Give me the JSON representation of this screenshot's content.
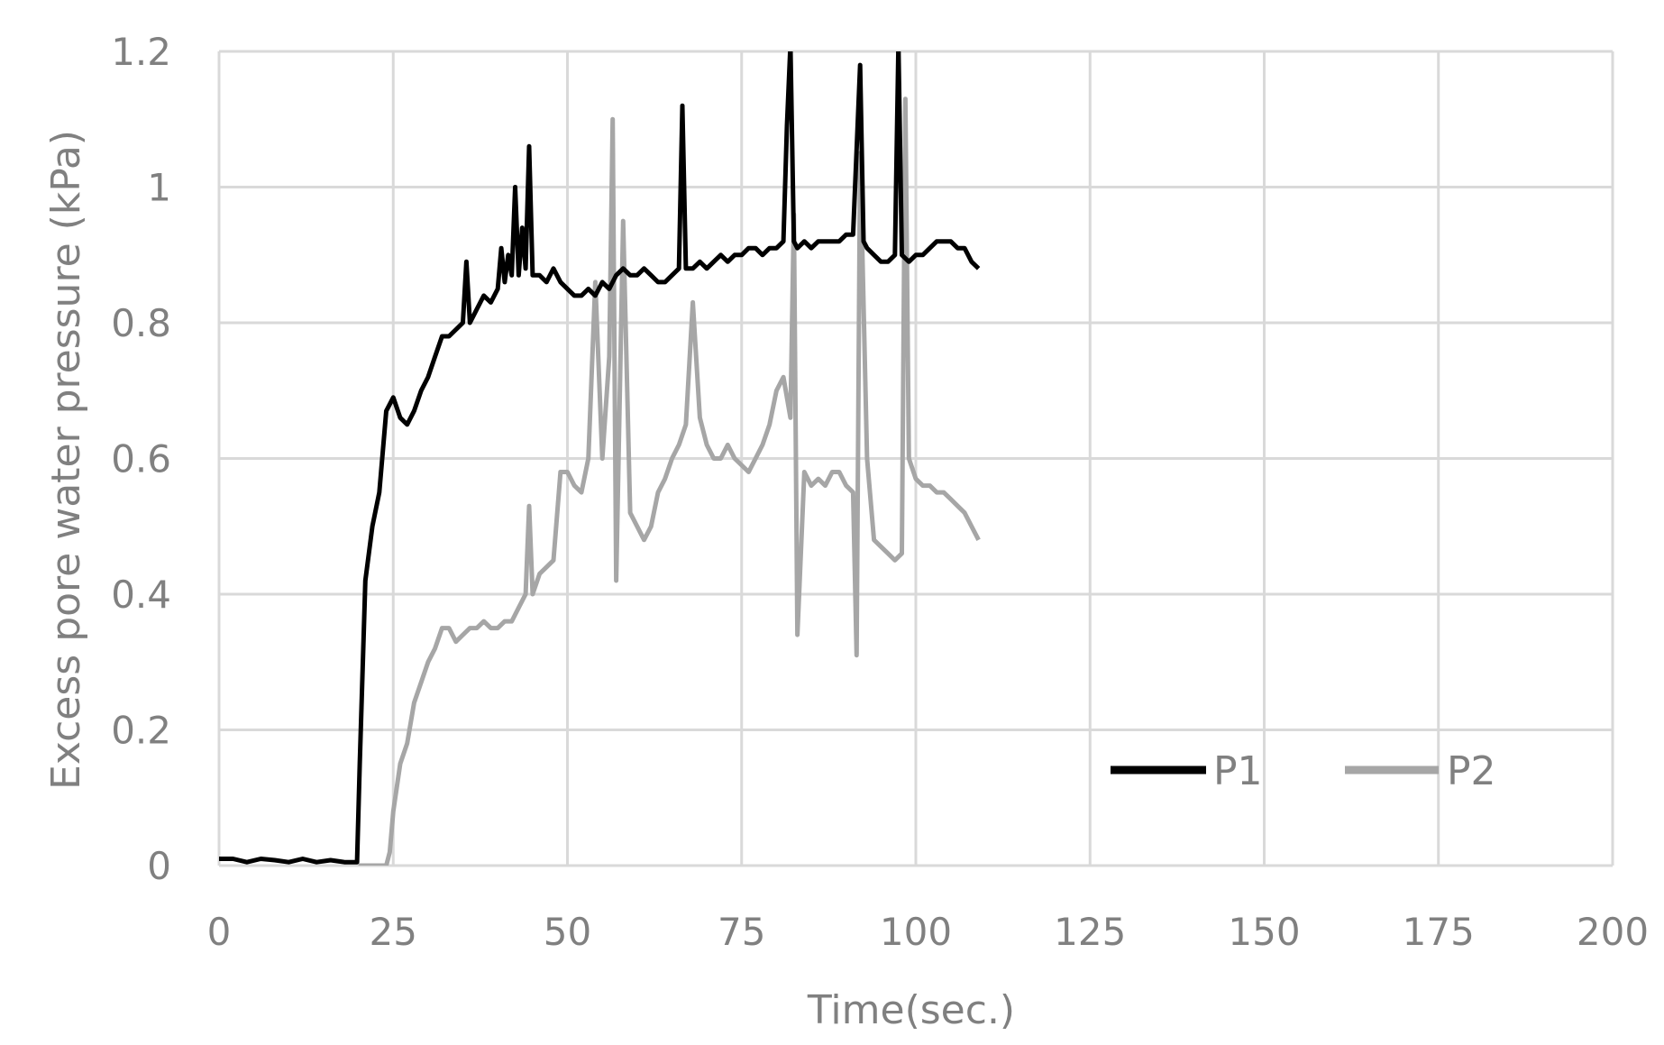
{
  "chart_data": {
    "type": "line",
    "xlabel": "Time(sec.)",
    "ylabel": "Excess pore water pressure (kPa)",
    "xlim": [
      0,
      200
    ],
    "ylim": [
      0,
      1.2
    ],
    "x_ticks": [
      0,
      25,
      50,
      75,
      100,
      125,
      150,
      175,
      200
    ],
    "x_tick_labels": [
      "0",
      "25",
      "50",
      "75",
      "100",
      "125",
      "150",
      "175",
      "200"
    ],
    "y_ticks": [
      0,
      0.2,
      0.4,
      0.6,
      0.8,
      1.0,
      1.2
    ],
    "y_tick_labels": [
      "0",
      "0.2",
      "0.4",
      "0.6",
      "0.8",
      "1",
      "1.2"
    ],
    "grid": true,
    "legend_position": "bottom-right",
    "series": [
      {
        "name": "P1",
        "color": "#000000",
        "x": [
          0,
          2,
          4,
          6,
          8,
          10,
          12,
          14,
          16,
          18,
          19.8,
          20.2,
          21,
          22,
          23,
          24,
          25,
          26,
          27,
          28,
          29,
          30,
          31,
          32,
          33,
          34,
          35,
          35.5,
          36,
          37,
          38,
          39,
          40,
          40.5,
          41,
          41.5,
          42,
          42.5,
          43,
          43.5,
          44,
          44.5,
          45,
          46,
          47,
          48,
          49,
          50,
          51,
          52,
          53,
          54,
          55,
          56,
          57,
          58,
          59,
          60,
          61,
          62,
          63,
          64,
          65,
          66,
          66.5,
          67,
          68,
          69,
          70,
          71,
          72,
          73,
          74,
          75,
          76,
          77,
          78,
          79,
          80,
          81,
          81.5,
          82,
          82.5,
          83,
          84,
          85,
          86,
          87,
          88,
          89,
          90,
          91,
          92,
          92.5,
          93,
          94,
          95,
          96,
          97,
          97.5,
          98,
          99,
          100,
          101,
          102,
          103,
          104,
          105,
          106,
          107,
          108,
          109
        ],
        "y": [
          0.01,
          0.01,
          0.005,
          0.01,
          0.008,
          0.005,
          0.01,
          0.005,
          0.008,
          0.005,
          0.005,
          0.15,
          0.42,
          0.5,
          0.55,
          0.67,
          0.69,
          0.66,
          0.65,
          0.67,
          0.7,
          0.72,
          0.75,
          0.78,
          0.78,
          0.79,
          0.8,
          0.89,
          0.8,
          0.82,
          0.84,
          0.83,
          0.85,
          0.91,
          0.86,
          0.9,
          0.87,
          1.0,
          0.87,
          0.94,
          0.88,
          1.06,
          0.87,
          0.87,
          0.86,
          0.88,
          0.86,
          0.85,
          0.84,
          0.84,
          0.85,
          0.84,
          0.86,
          0.85,
          0.87,
          0.88,
          0.87,
          0.87,
          0.88,
          0.87,
          0.86,
          0.86,
          0.87,
          0.88,
          1.12,
          0.88,
          0.88,
          0.89,
          0.88,
          0.89,
          0.9,
          0.89,
          0.9,
          0.9,
          0.91,
          0.91,
          0.9,
          0.91,
          0.91,
          0.92,
          1.09,
          1.21,
          0.92,
          0.91,
          0.92,
          0.91,
          0.92,
          0.92,
          0.92,
          0.92,
          0.93,
          0.93,
          1.18,
          0.92,
          0.91,
          0.9,
          0.89,
          0.89,
          0.9,
          1.21,
          0.9,
          0.89,
          0.9,
          0.9,
          0.91,
          0.92,
          0.92,
          0.92,
          0.91,
          0.91,
          0.89,
          0.88
        ]
      },
      {
        "name": "P2",
        "color": "#a6a6a6",
        "x": [
          20,
          22,
          24,
          24.5,
          25,
          26,
          27,
          28,
          29,
          30,
          31,
          32,
          33,
          34,
          35,
          36,
          37,
          38,
          39,
          40,
          41,
          42,
          43,
          44,
          44.5,
          45,
          46,
          47,
          48,
          49,
          50,
          51,
          52,
          53,
          54,
          55,
          56,
          56.5,
          57,
          58,
          59,
          60,
          61,
          62,
          63,
          64,
          65,
          66,
          67,
          68,
          69,
          70,
          71,
          72,
          73,
          74,
          75,
          76,
          77,
          78,
          79,
          80,
          81,
          82,
          82.5,
          83,
          84,
          85,
          86,
          87,
          88,
          89,
          90,
          91,
          91.5,
          92,
          93,
          94,
          95,
          96,
          97,
          98,
          98.5,
          99,
          100,
          101,
          102,
          103,
          104,
          105,
          106,
          107,
          108,
          109
        ],
        "y": [
          0,
          0,
          0,
          0.02,
          0.08,
          0.15,
          0.18,
          0.24,
          0.27,
          0.3,
          0.32,
          0.35,
          0.35,
          0.33,
          0.34,
          0.35,
          0.35,
          0.36,
          0.35,
          0.35,
          0.36,
          0.36,
          0.38,
          0.4,
          0.53,
          0.4,
          0.43,
          0.44,
          0.45,
          0.58,
          0.58,
          0.56,
          0.55,
          0.6,
          0.86,
          0.6,
          0.75,
          1.1,
          0.42,
          0.95,
          0.52,
          0.5,
          0.48,
          0.5,
          0.55,
          0.57,
          0.6,
          0.62,
          0.65,
          0.83,
          0.66,
          0.62,
          0.6,
          0.6,
          0.62,
          0.6,
          0.59,
          0.58,
          0.6,
          0.62,
          0.65,
          0.7,
          0.72,
          0.66,
          0.96,
          0.34,
          0.58,
          0.56,
          0.57,
          0.56,
          0.58,
          0.58,
          0.56,
          0.55,
          0.31,
          1.05,
          0.6,
          0.48,
          0.47,
          0.46,
          0.45,
          0.46,
          1.13,
          0.6,
          0.57,
          0.56,
          0.56,
          0.55,
          0.55,
          0.54,
          0.53,
          0.52,
          0.5,
          0.48
        ]
      }
    ]
  }
}
